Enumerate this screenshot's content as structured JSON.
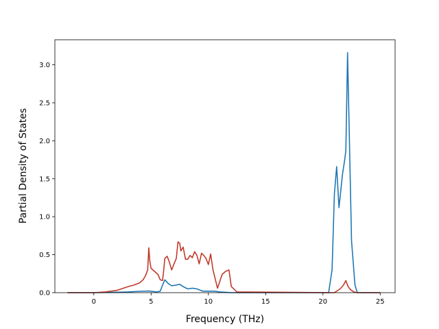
{
  "chart_data": {
    "type": "line",
    "title": "",
    "xlabel": "Frequency (THz)",
    "ylabel": "Partial Density of States",
    "xlim": [
      -3.4,
      26.3
    ],
    "ylim": [
      0.0,
      3.33
    ],
    "xticks": [
      0,
      5,
      10,
      15,
      20,
      25
    ],
    "yticks": [
      0.0,
      0.5,
      1.0,
      1.5,
      2.0,
      2.5,
      3.0
    ],
    "xtick_labels": [
      "0",
      "5",
      "10",
      "15",
      "20",
      "25"
    ],
    "ytick_labels": [
      "0.0",
      "0.5",
      "1.0",
      "1.5",
      "2.0",
      "2.5",
      "3.0"
    ],
    "grid": false,
    "legend": "none",
    "series": [
      {
        "color": "#1f77b4",
        "x": [
          -2.3,
          0,
          2.0,
          3.0,
          4.0,
          4.8,
          5.5,
          5.8,
          6.0,
          6.2,
          6.5,
          6.8,
          7.2,
          7.5,
          7.8,
          8.2,
          8.6,
          9.0,
          9.5,
          10.0,
          10.5,
          11.0,
          11.5,
          12.0,
          20.5,
          20.8,
          21.0,
          21.2,
          21.4,
          21.7,
          21.9,
          22.0,
          22.15,
          22.5,
          22.8,
          23.0,
          25.0
        ],
        "y": [
          0,
          0,
          0.005,
          0.01,
          0.018,
          0.022,
          0.01,
          0.02,
          0.1,
          0.17,
          0.12,
          0.09,
          0.1,
          0.11,
          0.08,
          0.05,
          0.06,
          0.05,
          0.02,
          0.02,
          0.02,
          0.01,
          0.005,
          0,
          0,
          0.3,
          1.3,
          1.66,
          1.12,
          1.55,
          1.75,
          1.87,
          3.16,
          0.68,
          0.1,
          0,
          0
        ]
      },
      {
        "color": "#c0392b",
        "x": [
          -2.3,
          0,
          1.0,
          2.0,
          3.0,
          3.5,
          4.0,
          4.3,
          4.5,
          4.7,
          4.8,
          4.9,
          5.0,
          5.3,
          5.6,
          5.8,
          6.0,
          6.1,
          6.2,
          6.4,
          6.6,
          6.8,
          7.0,
          7.2,
          7.35,
          7.5,
          7.6,
          7.8,
          8.0,
          8.2,
          8.4,
          8.6,
          8.8,
          9.0,
          9.2,
          9.4,
          9.6,
          9.8,
          10.0,
          10.2,
          10.4,
          10.6,
          10.8,
          11.0,
          11.2,
          11.5,
          11.8,
          12.0,
          12.5,
          21.0,
          21.5,
          21.8,
          22.0,
          22.2,
          22.4,
          22.7,
          23.0,
          25.0
        ],
        "y": [
          0,
          0,
          0.01,
          0.03,
          0.08,
          0.1,
          0.13,
          0.17,
          0.22,
          0.3,
          0.59,
          0.4,
          0.32,
          0.28,
          0.24,
          0.17,
          0.16,
          0.3,
          0.45,
          0.48,
          0.4,
          0.3,
          0.38,
          0.45,
          0.67,
          0.65,
          0.55,
          0.6,
          0.44,
          0.44,
          0.49,
          0.46,
          0.54,
          0.49,
          0.38,
          0.52,
          0.49,
          0.45,
          0.37,
          0.51,
          0.3,
          0.18,
          0.06,
          0.15,
          0.24,
          0.28,
          0.3,
          0.08,
          0.01,
          0,
          0.05,
          0.1,
          0.16,
          0.08,
          0.04,
          0.01,
          0,
          0
        ]
      }
    ]
  }
}
